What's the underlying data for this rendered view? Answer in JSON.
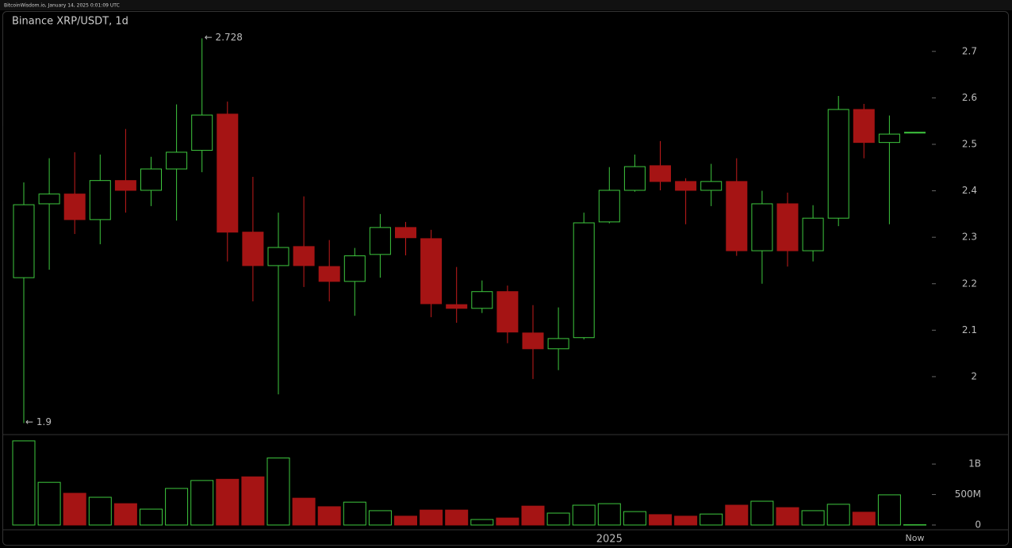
{
  "header": "BitcoinWisdom.io, January 14, 2025 0:01:09 UTC",
  "chart_data": {
    "type": "candlestick",
    "title": "Binance XRP/USDT, 1d",
    "categories": [
      null,
      null,
      null,
      null,
      null,
      null,
      null,
      null,
      null,
      null,
      null,
      null,
      null,
      null,
      null,
      null,
      null,
      null,
      null,
      null,
      null,
      null,
      null,
      "2025",
      null,
      null,
      null,
      null,
      null,
      null,
      null,
      null,
      null,
      null,
      null,
      "Now"
    ],
    "open": [
      2.213,
      2.372,
      2.393,
      2.338,
      2.422,
      2.401,
      2.447,
      2.487,
      2.565,
      2.311,
      2.239,
      2.28,
      2.237,
      2.205,
      2.263,
      2.321,
      2.297,
      2.155,
      2.147,
      2.183,
      2.094,
      2.06,
      2.084,
      2.333,
      2.401,
      2.454,
      2.42,
      2.401,
      2.42,
      2.271,
      2.372,
      2.271,
      2.341,
      2.575,
      2.504,
      2.526
    ],
    "high": [
      2.418,
      2.47,
      2.483,
      2.478,
      2.533,
      2.473,
      2.586,
      2.728,
      2.592,
      2.43,
      2.353,
      2.388,
      2.294,
      2.277,
      2.35,
      2.333,
      2.316,
      2.236,
      2.207,
      2.196,
      2.154,
      2.149,
      2.353,
      2.451,
      2.478,
      2.507,
      2.427,
      2.458,
      2.47,
      2.4,
      2.396,
      2.369,
      2.604,
      2.587,
      2.562,
      2.526
    ],
    "low": [
      1.9,
      2.23,
      2.307,
      2.285,
      2.353,
      2.367,
      2.336,
      2.44,
      2.248,
      2.162,
      1.962,
      2.193,
      2.162,
      2.131,
      2.213,
      2.261,
      2.128,
      2.116,
      2.137,
      2.072,
      1.995,
      2.014,
      2.08,
      2.33,
      2.398,
      2.401,
      2.328,
      2.367,
      2.26,
      2.2,
      2.237,
      2.248,
      2.324,
      2.47,
      2.328,
      2.526
    ],
    "close": [
      2.37,
      2.393,
      2.338,
      2.422,
      2.401,
      2.447,
      2.483,
      2.563,
      2.311,
      2.239,
      2.278,
      2.239,
      2.205,
      2.26,
      2.321,
      2.299,
      2.157,
      2.147,
      2.183,
      2.096,
      2.06,
      2.082,
      2.331,
      2.401,
      2.452,
      2.42,
      2.401,
      2.42,
      2.271,
      2.372,
      2.271,
      2.341,
      2.575,
      2.504,
      2.522,
      2.526
    ],
    "volume": [
      1380,
      700,
      520,
      455,
      350,
      260,
      600,
      730,
      750,
      790,
      1100,
      440,
      300,
      375,
      235,
      145,
      245,
      245,
      90,
      115,
      310,
      195,
      325,
      350,
      220,
      170,
      145,
      180,
      325,
      390,
      285,
      235,
      340,
      210,
      495,
      5
    ],
    "up_color": "#3ec73e",
    "down_color": "#a51414",
    "ylim": [
      1.877,
      2.785
    ],
    "yticks": [
      2,
      2.1,
      2.2,
      2.3,
      2.4,
      2.5,
      2.6,
      2.7
    ],
    "volume_ylim": [
      0,
      1470
    ],
    "volume_yticks": [
      0,
      {
        "value": 500,
        "label": "500M"
      },
      {
        "value": 1000,
        "label": "1B"
      }
    ],
    "annotations": [
      "← 2.728",
      "← 1.9"
    ]
  }
}
